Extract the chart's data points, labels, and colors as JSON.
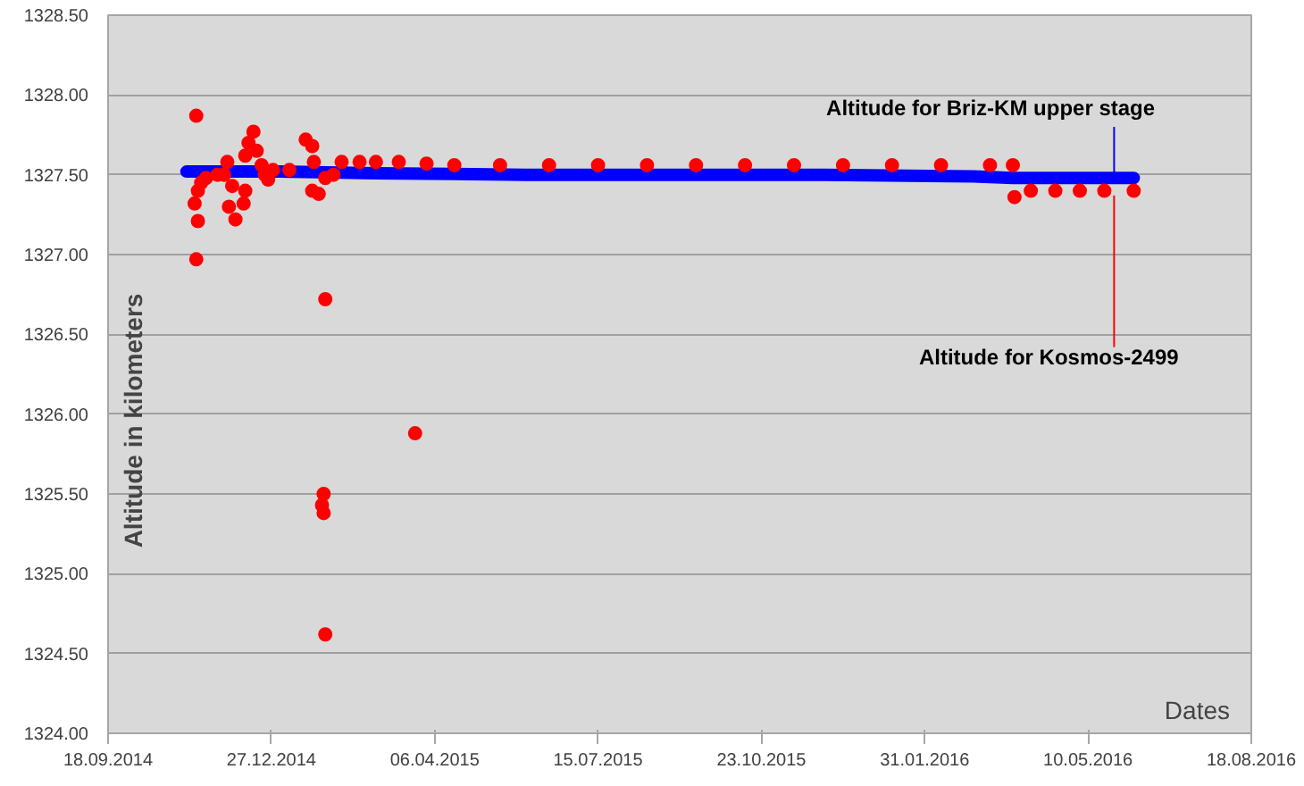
{
  "chart_data": {
    "type": "scatter",
    "xlabel": "Dates",
    "ylabel": "Altitude in kilometers",
    "xlim": [
      "2014-09-18",
      "2016-08-18"
    ],
    "xticks": [
      {
        "value": "2014-09-18",
        "label": "18.09.2014"
      },
      {
        "value": "2014-12-27",
        "label": "27.12.2014"
      },
      {
        "value": "2015-04-06",
        "label": "06.04.2015"
      },
      {
        "value": "2015-07-15",
        "label": "15.07.2015"
      },
      {
        "value": "2015-10-23",
        "label": "23.10.2015"
      },
      {
        "value": "2016-01-31",
        "label": "31.01.2016"
      },
      {
        "value": "2016-05-10",
        "label": "10.05.2016"
      },
      {
        "value": "2016-08-18",
        "label": "18.08.2016"
      }
    ],
    "ylim": [
      1324.0,
      1328.5
    ],
    "yticks": [
      {
        "value": 1324.0,
        "label": "1324.00"
      },
      {
        "value": 1324.5,
        "label": "1324.50"
      },
      {
        "value": 1325.0,
        "label": "1325.00"
      },
      {
        "value": 1325.5,
        "label": "1325.50"
      },
      {
        "value": 1326.0,
        "label": "1326.00"
      },
      {
        "value": 1326.5,
        "label": "1326.50"
      },
      {
        "value": 1327.0,
        "label": "1327.00"
      },
      {
        "value": 1327.5,
        "label": "1327.50"
      },
      {
        "value": 1328.0,
        "label": "1328.00"
      },
      {
        "value": 1328.5,
        "label": "1328.50"
      }
    ],
    "grid": "y",
    "marker": "circle",
    "legend": false,
    "series": [
      {
        "name": "Altitude for Briz-KM upper stage",
        "type": "line",
        "marker": "none",
        "color": "#0000ff",
        "x": [
          "2014-11-05",
          "2015-01-01",
          "2015-03-01",
          "2015-06-01",
          "2015-09-01",
          "2015-12-01",
          "2016-03-01",
          "2016-03-25",
          "2016-06-07"
        ],
        "values": [
          1327.52,
          1327.52,
          1327.51,
          1327.5,
          1327.5,
          1327.5,
          1327.49,
          1327.48,
          1327.48
        ]
      },
      {
        "name": "Altitude for Kosmos-2499",
        "color": "#ff0000",
        "x": [
          "2014-11-11",
          "2014-11-11",
          "2014-11-12",
          "2014-11-10",
          "2014-11-12",
          "2014-11-14",
          "2014-11-17",
          "2014-11-24",
          "2014-11-28",
          "2014-11-30",
          "2014-12-01",
          "2014-12-03",
          "2014-12-05",
          "2014-12-10",
          "2014-12-11",
          "2014-12-11",
          "2014-12-13",
          "2014-12-16",
          "2014-12-18",
          "2014-12-21",
          "2014-12-23",
          "2014-12-25",
          "2014-12-28",
          "2015-01-07",
          "2015-01-17",
          "2015-01-21",
          "2015-01-22",
          "2015-01-21",
          "2015-01-25",
          "2015-01-29",
          "2015-01-29",
          "2015-01-28",
          "2015-01-27",
          "2015-01-28",
          "2015-01-29",
          "2015-02-03",
          "2015-02-08",
          "2015-02-19",
          "2015-03-01",
          "2015-03-15",
          "2015-03-25",
          "2015-04-01",
          "2015-04-18",
          "2015-05-16",
          "2015-06-15",
          "2015-07-15",
          "2015-08-14",
          "2015-09-13",
          "2015-10-13",
          "2015-11-12",
          "2015-12-12",
          "2016-01-11",
          "2016-02-10",
          "2016-03-11",
          "2016-03-25",
          "2016-03-26",
          "2016-04-05",
          "2016-04-20",
          "2016-05-05",
          "2016-05-20",
          "2016-06-07"
        ],
        "values": [
          1327.87,
          1326.97,
          1327.21,
          1327.32,
          1327.4,
          1327.45,
          1327.48,
          1327.5,
          1327.5,
          1327.58,
          1327.3,
          1327.43,
          1327.22,
          1327.32,
          1327.4,
          1327.62,
          1327.7,
          1327.77,
          1327.65,
          1327.56,
          1327.5,
          1327.47,
          1327.53,
          1327.53,
          1327.72,
          1327.68,
          1327.58,
          1327.4,
          1327.38,
          1327.48,
          1326.72,
          1325.5,
          1325.43,
          1325.38,
          1324.62,
          1327.5,
          1327.58,
          1327.58,
          1327.58,
          1327.58,
          1325.88,
          1327.57,
          1327.56,
          1327.56,
          1327.56,
          1327.56,
          1327.56,
          1327.56,
          1327.56,
          1327.56,
          1327.56,
          1327.56,
          1327.56,
          1327.56,
          1327.56,
          1327.36,
          1327.4,
          1327.4,
          1327.4,
          1327.4,
          1327.4
        ]
      }
    ]
  }
}
